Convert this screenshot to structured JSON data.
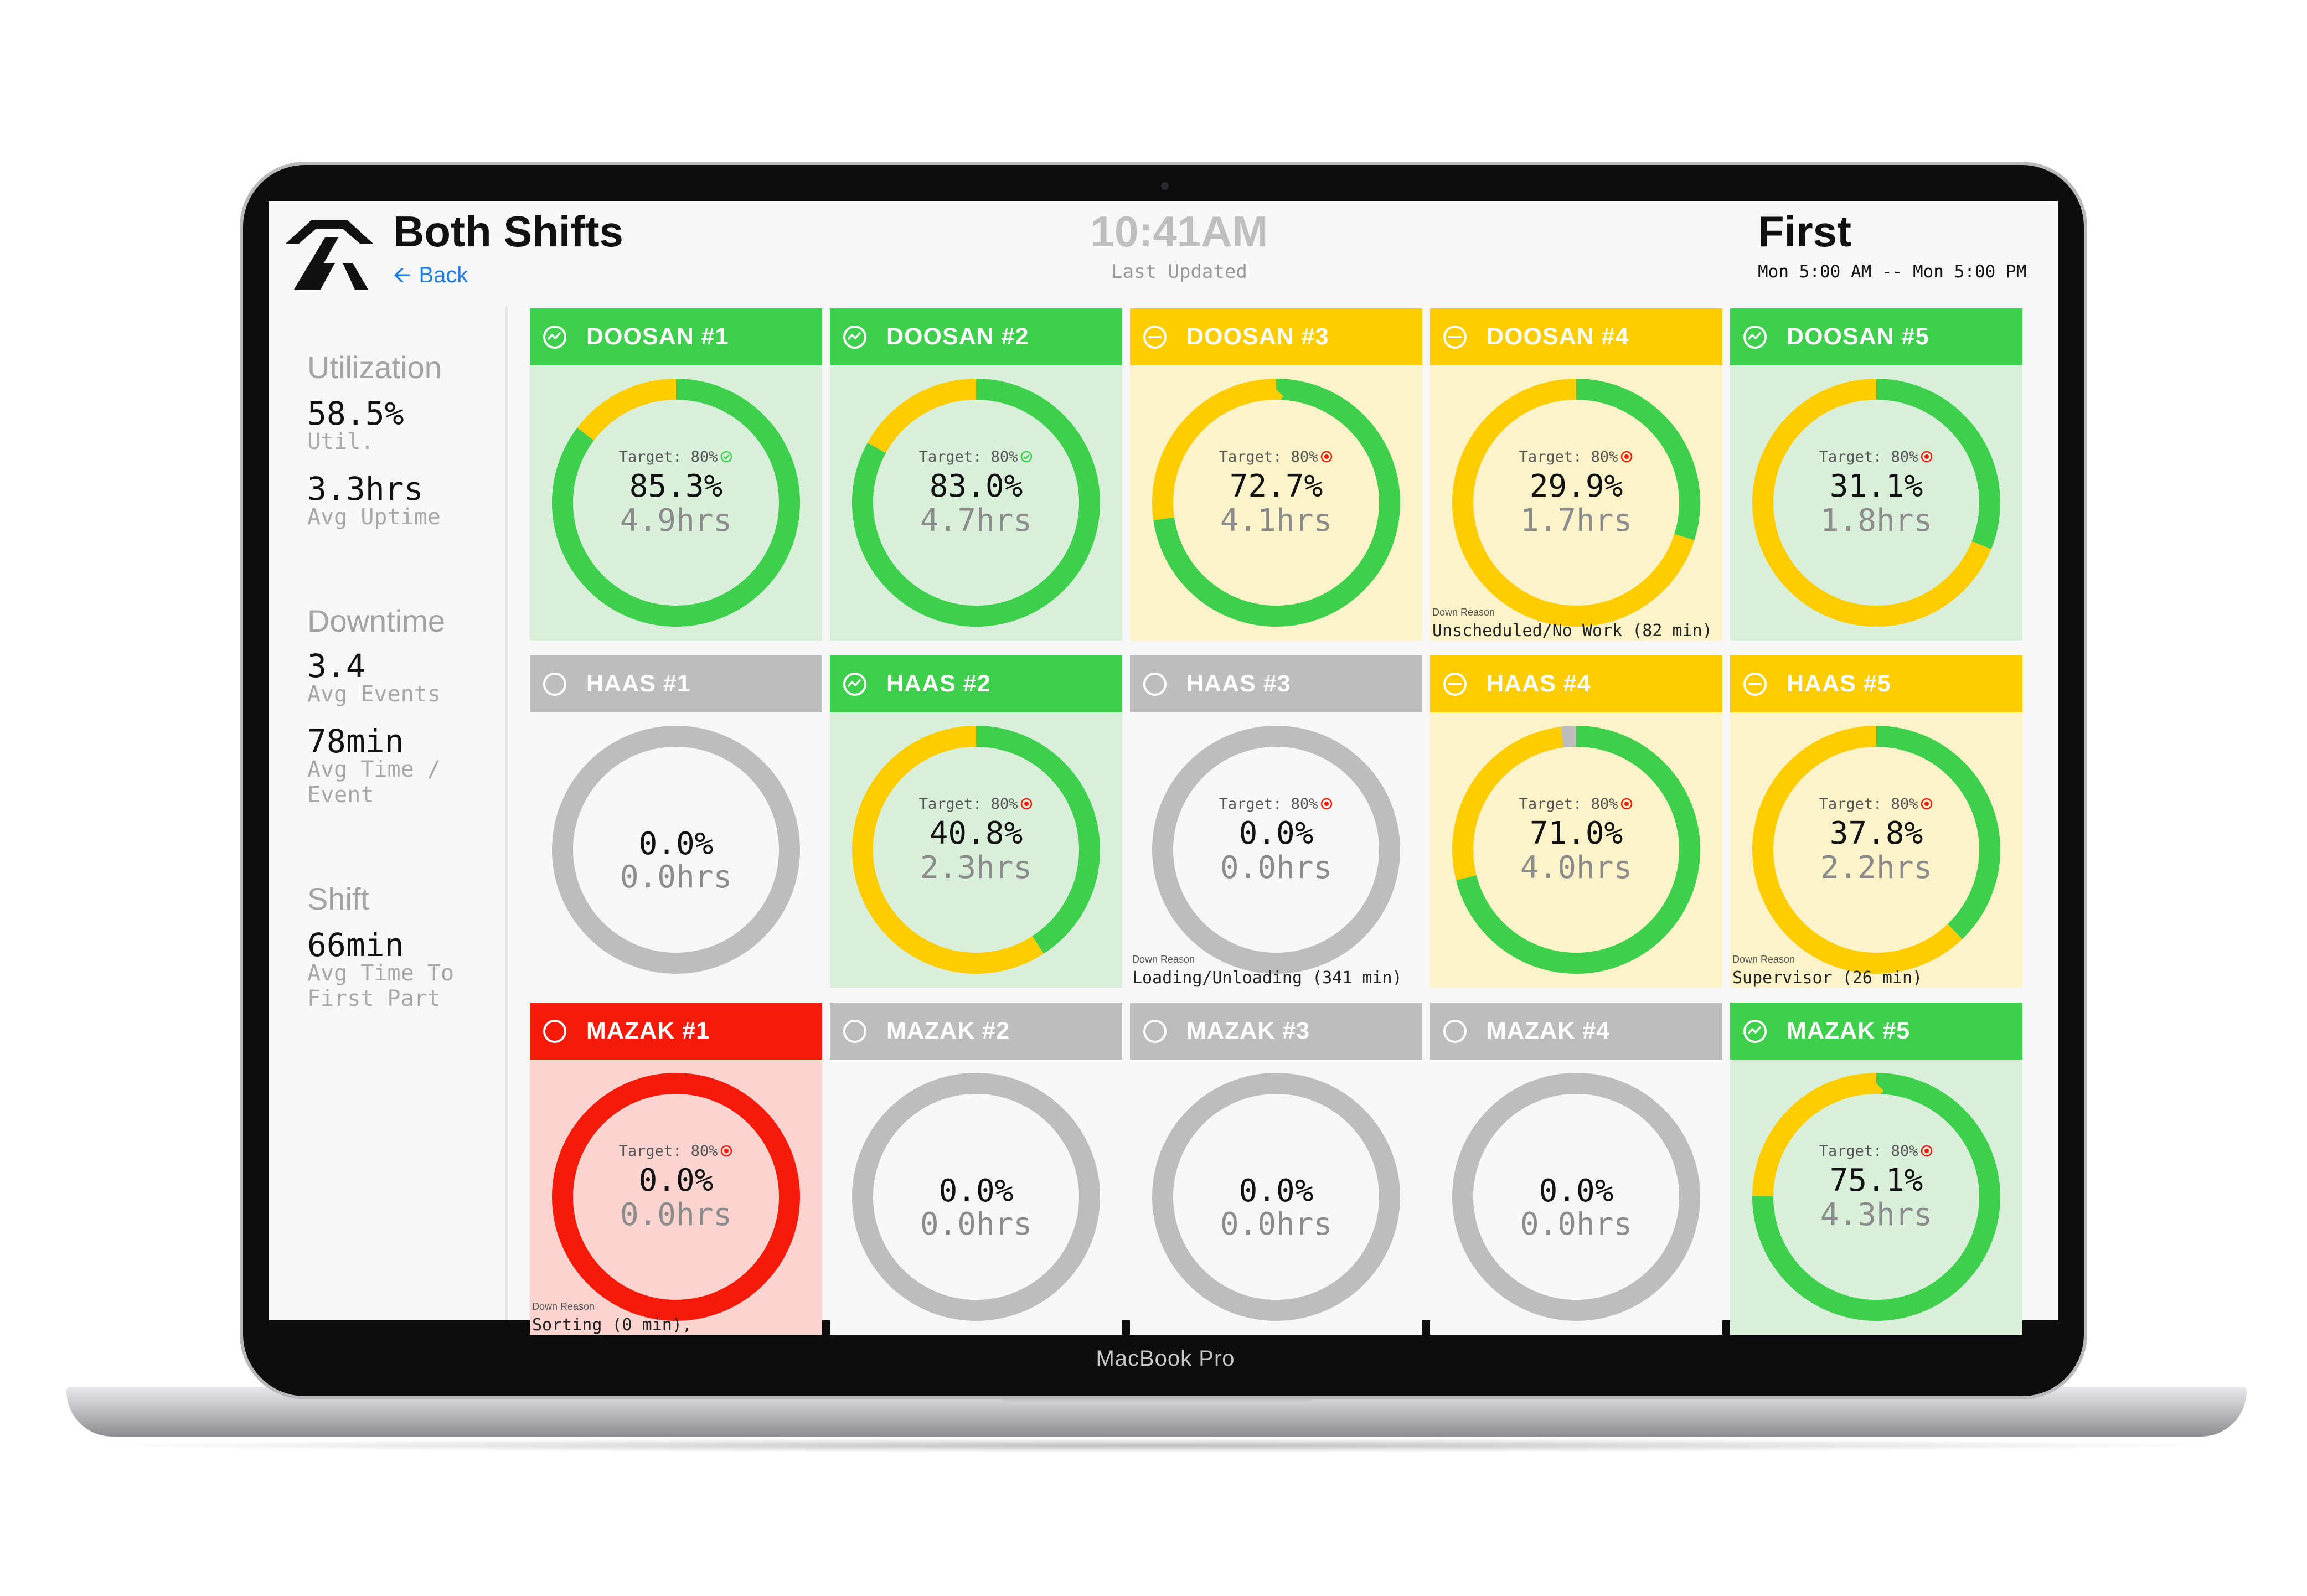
{
  "device": {
    "brand_label": "MacBook Pro"
  },
  "header": {
    "title": "Both Shifts",
    "back_label": "Back",
    "clock": "10:41AM",
    "last_updated_label": "Last Updated",
    "shift_name": "First",
    "shift_range": "Mon 5:00 AM -- Mon 5:00 PM"
  },
  "sidebar": {
    "utilization": {
      "title": "Utilization",
      "util_value": "58.5%",
      "util_label": "Util.",
      "uptime_value": "3.3hrs",
      "uptime_label": "Avg Uptime"
    },
    "downtime": {
      "title": "Downtime",
      "events_value": "3.4",
      "events_label": "Avg Events",
      "time_value": "78min",
      "time_label": "Avg Time / Event"
    },
    "shift": {
      "title": "Shift",
      "first_part_value": "66min",
      "first_part_label": "Avg Time To First Part"
    }
  },
  "colors": {
    "green": "#3ecf4c",
    "yellow": "#ffcc00",
    "gray": "#bdbdbd",
    "red": "#f51a0a",
    "link_blue": "#1c7de0"
  },
  "machines": [
    {
      "name": "DOOSAN #1",
      "status": "green",
      "target": "Target: 80%",
      "target_met": true,
      "pct": "85.3%",
      "hrs": "4.9hrs",
      "segments": [
        [
          "green",
          0.853
        ],
        [
          "yellow",
          0.147
        ]
      ]
    },
    {
      "name": "DOOSAN #2",
      "status": "green",
      "target": "Target: 80%",
      "target_met": true,
      "pct": "83.0%",
      "hrs": "4.7hrs",
      "segments": [
        [
          "green",
          0.83
        ],
        [
          "yellow",
          0.17
        ]
      ]
    },
    {
      "name": "DOOSAN #3",
      "status": "yellow",
      "target": "Target: 80%",
      "target_met": false,
      "pct": "72.7%",
      "hrs": "4.1hrs",
      "segments": [
        [
          "green",
          0.727
        ],
        [
          "yellow",
          0.273
        ]
      ]
    },
    {
      "name": "DOOSAN #4",
      "status": "yellow",
      "target": "Target: 80%",
      "target_met": false,
      "pct": "29.9%",
      "hrs": "1.7hrs",
      "segments": [
        [
          "green",
          0.299
        ],
        [
          "yellow",
          0.701
        ]
      ],
      "down_reason_label": "Down Reason",
      "down_reason": "Unscheduled/No Work (82 min)"
    },
    {
      "name": "DOOSAN #5",
      "status": "green",
      "target": "Target: 80%",
      "target_met": false,
      "pct": "31.1%",
      "hrs": "1.8hrs",
      "segments": [
        [
          "green",
          0.311
        ],
        [
          "yellow",
          0.689
        ]
      ]
    },
    {
      "name": "HAAS #1",
      "status": "gray",
      "pct": "0.0%",
      "hrs": "0.0hrs",
      "segments": [
        [
          "gray",
          1.0
        ]
      ]
    },
    {
      "name": "HAAS #2",
      "status": "green",
      "target": "Target: 80%",
      "target_met": false,
      "pct": "40.8%",
      "hrs": "2.3hrs",
      "segments": [
        [
          "green",
          0.408
        ],
        [
          "yellow",
          0.592
        ]
      ]
    },
    {
      "name": "HAAS #3",
      "status": "gray",
      "target": "Target: 80%",
      "target_met": false,
      "pct": "0.0%",
      "hrs": "0.0hrs",
      "segments": [
        [
          "gray",
          1.0
        ]
      ],
      "down_reason_label": "Down Reason",
      "down_reason": "Loading/Unloading (341 min)"
    },
    {
      "name": "HAAS #4",
      "status": "yellow",
      "target": "Target: 80%",
      "target_met": false,
      "pct": "71.0%",
      "hrs": "4.0hrs",
      "segments": [
        [
          "green",
          0.71
        ],
        [
          "yellow",
          0.27
        ],
        [
          "gray",
          0.02
        ]
      ]
    },
    {
      "name": "HAAS #5",
      "status": "yellow",
      "target": "Target: 80%",
      "target_met": false,
      "pct": "37.8%",
      "hrs": "2.2hrs",
      "segments": [
        [
          "green",
          0.378
        ],
        [
          "yellow",
          0.622
        ]
      ],
      "down_reason_label": "Down Reason",
      "down_reason": "Supervisor (26 min)"
    },
    {
      "name": "MAZAK #1",
      "status": "red",
      "target": "Target: 80%",
      "target_met": false,
      "pct": "0.0%",
      "hrs": "0.0hrs",
      "segments": [
        [
          "red",
          1.0
        ]
      ],
      "down_reason_label": "Down Reason",
      "down_reason": "Sorting (0 min),"
    },
    {
      "name": "MAZAK #2",
      "status": "gray",
      "pct": "0.0%",
      "hrs": "0.0hrs",
      "segments": [
        [
          "gray",
          1.0
        ]
      ]
    },
    {
      "name": "MAZAK #3",
      "status": "gray",
      "pct": "0.0%",
      "hrs": "0.0hrs",
      "segments": [
        [
          "gray",
          1.0
        ]
      ]
    },
    {
      "name": "MAZAK #4",
      "status": "gray",
      "pct": "0.0%",
      "hrs": "0.0hrs",
      "segments": [
        [
          "gray",
          1.0
        ]
      ]
    },
    {
      "name": "MAZAK #5",
      "status": "green",
      "target": "Target: 80%",
      "target_met": false,
      "pct": "75.1%",
      "hrs": "4.3hrs",
      "segments": [
        [
          "green",
          0.751
        ],
        [
          "yellow",
          0.249
        ]
      ]
    }
  ]
}
